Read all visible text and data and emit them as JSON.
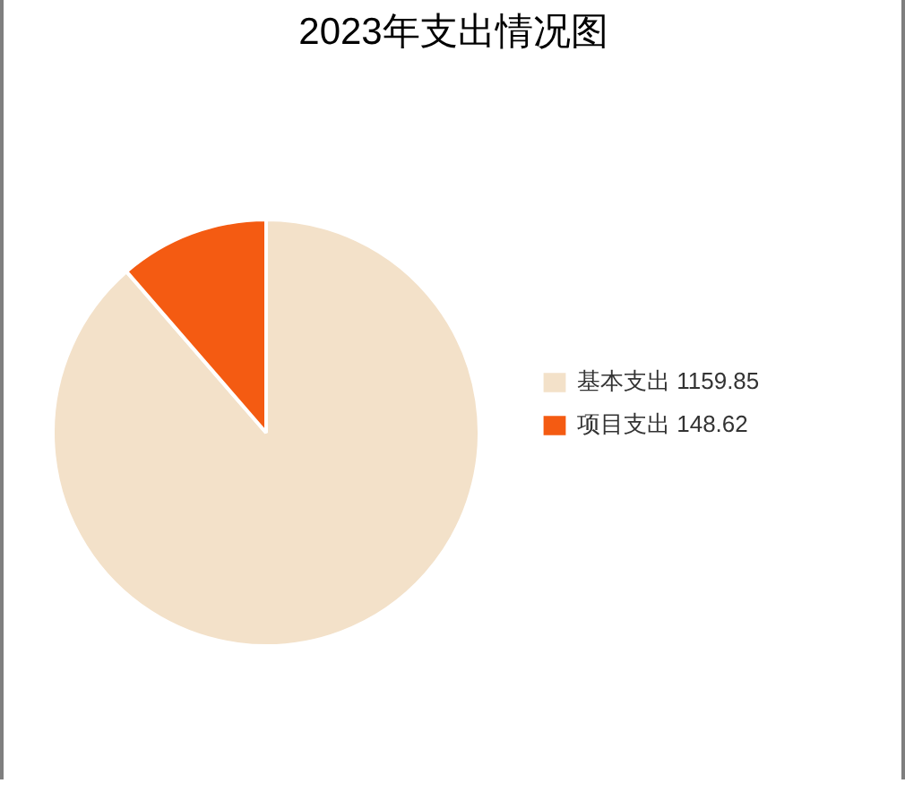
{
  "chart_data": {
    "type": "pie",
    "title": "2023年支出情况图",
    "categories": [
      "基本支出 1159.85",
      "项目支出 148.62"
    ],
    "values": [
      1159.85,
      148.62
    ],
    "colors": [
      "#f3e1c9",
      "#f45b12"
    ],
    "legend": "right"
  }
}
